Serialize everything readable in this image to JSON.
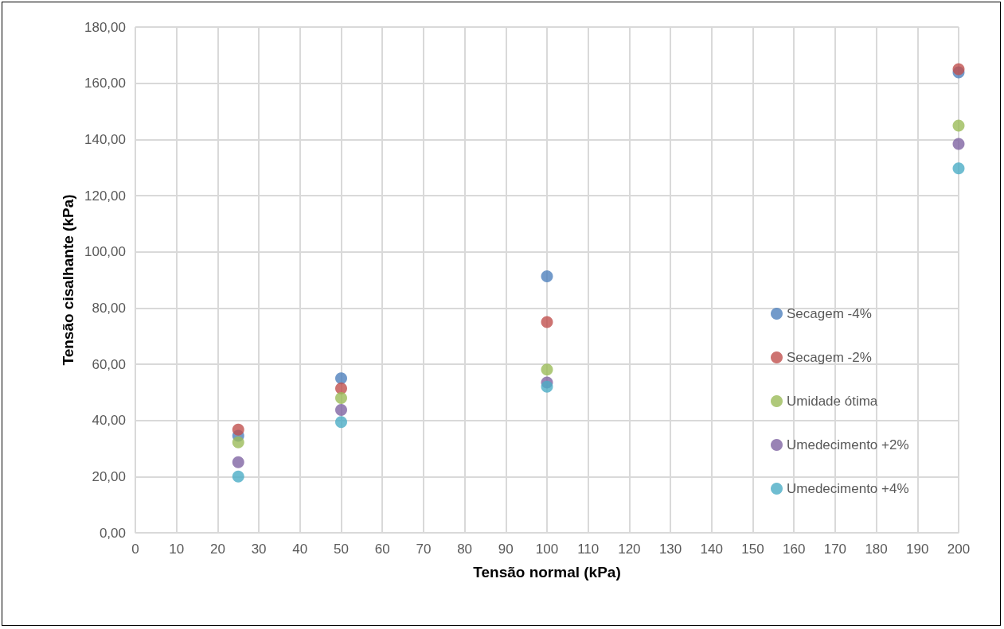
{
  "chart_data": {
    "type": "scatter",
    "xlabel": "Tensão normal (kPa)",
    "ylabel": "Tensão cisalhante (kPa)",
    "x": [
      25,
      50,
      100,
      200
    ],
    "series": [
      {
        "name": "Secagem -4%",
        "color": "#4f81bd",
        "values": [
          34.5,
          55.0,
          91.3,
          163.9
        ]
      },
      {
        "name": "Secagem -2%",
        "color": "#c0504d",
        "values": [
          36.7,
          51.4,
          75.0,
          165.0
        ]
      },
      {
        "name": "Umidade ótima",
        "color": "#9bbb59",
        "values": [
          32.2,
          48.0,
          58.1,
          144.9
        ]
      },
      {
        "name": "Umedecimento +2%",
        "color": "#8064a2",
        "values": [
          25.1,
          43.7,
          53.5,
          138.4
        ]
      },
      {
        "name": "Umedecimento +4%",
        "color": "#4bacc6",
        "values": [
          20.0,
          39.4,
          52.0,
          129.7
        ]
      }
    ],
    "xlim": [
      0,
      200
    ],
    "xticks": [
      0,
      10,
      20,
      30,
      40,
      50,
      60,
      70,
      80,
      90,
      100,
      110,
      120,
      130,
      140,
      150,
      160,
      170,
      180,
      190,
      200
    ],
    "ylim": [
      0,
      180
    ],
    "yticks": [
      {
        "value": 0,
        "label": "0,00"
      },
      {
        "value": 20,
        "label": "20,00"
      },
      {
        "value": 40,
        "label": "40,00"
      },
      {
        "value": 60,
        "label": "60,00"
      },
      {
        "value": 80,
        "label": "80,00"
      },
      {
        "value": 100,
        "label": "100,00"
      },
      {
        "value": 120,
        "label": "120,00"
      },
      {
        "value": 140,
        "label": "140,00"
      },
      {
        "value": 160,
        "label": "160,00"
      },
      {
        "value": 180,
        "label": "180,00"
      }
    ],
    "grid": true,
    "legend": "right",
    "marker": "circle"
  }
}
